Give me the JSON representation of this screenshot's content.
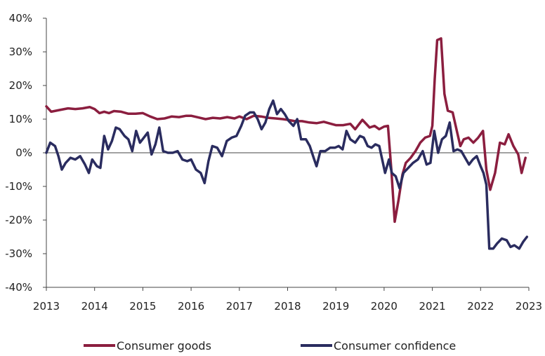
{
  "chart_data": {
    "type": "line",
    "title": "",
    "xlabel": "",
    "ylabel": "",
    "ylim": [
      -40,
      40
    ],
    "xlim": [
      2013,
      2023
    ],
    "yticks": [
      {
        "value": 40,
        "label": "40%"
      },
      {
        "value": 30,
        "label": "30%"
      },
      {
        "value": 20,
        "label": "20%"
      },
      {
        "value": 10,
        "label": "10%"
      },
      {
        "value": 0,
        "label": "0%"
      },
      {
        "value": -10,
        "label": "-10%"
      },
      {
        "value": -20,
        "label": "-20%"
      },
      {
        "value": -30,
        "label": "-30%"
      },
      {
        "value": -40,
        "label": "-40%"
      }
    ],
    "xticks": [
      {
        "value": 2013,
        "label": "2013"
      },
      {
        "value": 2014,
        "label": "2014"
      },
      {
        "value": 2015,
        "label": "2015"
      },
      {
        "value": 2016,
        "label": "2016"
      },
      {
        "value": 2017,
        "label": "2017"
      },
      {
        "value": 2018,
        "label": "2018"
      },
      {
        "value": 2019,
        "label": "2019"
      },
      {
        "value": 2020,
        "label": "2020"
      },
      {
        "value": 2021,
        "label": "2021"
      },
      {
        "value": 2022,
        "label": "2022"
      },
      {
        "value": 2023,
        "label": "2023"
      }
    ],
    "grid": false,
    "legend_position": "bottom",
    "series": [
      {
        "name": "Consumer goods",
        "color": "#8b1e3f",
        "points": [
          [
            2013.0,
            13.8
          ],
          [
            2013.1,
            12.2
          ],
          [
            2013.3,
            12.8
          ],
          [
            2013.45,
            13.2
          ],
          [
            2013.6,
            13.0
          ],
          [
            2013.75,
            13.2
          ],
          [
            2013.9,
            13.6
          ],
          [
            2014.0,
            13.0
          ],
          [
            2014.1,
            11.8
          ],
          [
            2014.2,
            12.2
          ],
          [
            2014.3,
            11.8
          ],
          [
            2014.4,
            12.4
          ],
          [
            2014.55,
            12.2
          ],
          [
            2014.7,
            11.6
          ],
          [
            2014.85,
            11.6
          ],
          [
            2015.0,
            11.8
          ],
          [
            2015.15,
            10.8
          ],
          [
            2015.3,
            10.0
          ],
          [
            2015.45,
            10.2
          ],
          [
            2015.6,
            10.8
          ],
          [
            2015.75,
            10.6
          ],
          [
            2015.9,
            11.0
          ],
          [
            2016.0,
            11.0
          ],
          [
            2016.15,
            10.5
          ],
          [
            2016.3,
            10.0
          ],
          [
            2016.45,
            10.4
          ],
          [
            2016.6,
            10.2
          ],
          [
            2016.75,
            10.6
          ],
          [
            2016.9,
            10.2
          ],
          [
            2017.0,
            10.8
          ],
          [
            2017.15,
            10.0
          ],
          [
            2017.3,
            11.0
          ],
          [
            2017.45,
            10.8
          ],
          [
            2017.6,
            10.4
          ],
          [
            2017.75,
            10.2
          ],
          [
            2017.9,
            10.0
          ],
          [
            2018.0,
            9.8
          ],
          [
            2018.15,
            9.4
          ],
          [
            2018.3,
            9.4
          ],
          [
            2018.45,
            9.0
          ],
          [
            2018.6,
            8.8
          ],
          [
            2018.75,
            9.2
          ],
          [
            2018.9,
            8.6
          ],
          [
            2019.0,
            8.2
          ],
          [
            2019.15,
            8.2
          ],
          [
            2019.3,
            8.6
          ],
          [
            2019.4,
            7.0
          ],
          [
            2019.55,
            9.8
          ],
          [
            2019.7,
            7.5
          ],
          [
            2019.8,
            8.0
          ],
          [
            2019.9,
            7.0
          ],
          [
            2020.0,
            7.8
          ],
          [
            2020.08,
            8.0
          ],
          [
            2020.15,
            -5.0
          ],
          [
            2020.22,
            -20.5
          ],
          [
            2020.3,
            -14.0
          ],
          [
            2020.38,
            -6.5
          ],
          [
            2020.45,
            -3.0
          ],
          [
            2020.55,
            -1.5
          ],
          [
            2020.65,
            0.5
          ],
          [
            2020.75,
            3.0
          ],
          [
            2020.85,
            4.5
          ],
          [
            2020.95,
            5.0
          ],
          [
            2021.0,
            8.0
          ],
          [
            2021.05,
            22.0
          ],
          [
            2021.1,
            33.5
          ],
          [
            2021.18,
            34.0
          ],
          [
            2021.25,
            17.5
          ],
          [
            2021.32,
            12.5
          ],
          [
            2021.42,
            12.0
          ],
          [
            2021.5,
            7.0
          ],
          [
            2021.58,
            2.0
          ],
          [
            2021.65,
            4.0
          ],
          [
            2021.75,
            4.5
          ],
          [
            2021.85,
            3.0
          ],
          [
            2021.95,
            4.5
          ],
          [
            2022.05,
            6.5
          ],
          [
            2022.12,
            -5.0
          ],
          [
            2022.2,
            -11.0
          ],
          [
            2022.3,
            -6.0
          ],
          [
            2022.4,
            3.0
          ],
          [
            2022.5,
            2.5
          ],
          [
            2022.58,
            5.5
          ],
          [
            2022.68,
            2.0
          ],
          [
            2022.78,
            -0.5
          ],
          [
            2022.85,
            -6.0
          ],
          [
            2022.93,
            -1.5
          ]
        ]
      },
      {
        "name": "Consumer confidence",
        "color": "#2a2c5f",
        "points": [
          [
            2013.0,
            0.0
          ],
          [
            2013.08,
            3.0
          ],
          [
            2013.18,
            2.0
          ],
          [
            2013.25,
            -1.0
          ],
          [
            2013.32,
            -5.0
          ],
          [
            2013.4,
            -3.0
          ],
          [
            2013.5,
            -1.5
          ],
          [
            2013.6,
            -2.0
          ],
          [
            2013.7,
            -1.0
          ],
          [
            2013.8,
            -3.5
          ],
          [
            2013.88,
            -6.0
          ],
          [
            2013.95,
            -2.0
          ],
          [
            2014.05,
            -4.0
          ],
          [
            2014.12,
            -4.5
          ],
          [
            2014.2,
            5.0
          ],
          [
            2014.28,
            1.0
          ],
          [
            2014.36,
            3.5
          ],
          [
            2014.44,
            7.5
          ],
          [
            2014.52,
            7.0
          ],
          [
            2014.62,
            5.0
          ],
          [
            2014.7,
            4.0
          ],
          [
            2014.78,
            0.5
          ],
          [
            2014.86,
            6.5
          ],
          [
            2014.94,
            3.0
          ],
          [
            2015.02,
            4.5
          ],
          [
            2015.1,
            6.0
          ],
          [
            2015.18,
            -0.5
          ],
          [
            2015.26,
            2.5
          ],
          [
            2015.34,
            7.5
          ],
          [
            2015.42,
            0.5
          ],
          [
            2015.52,
            0.0
          ],
          [
            2015.62,
            0.0
          ],
          [
            2015.72,
            0.5
          ],
          [
            2015.82,
            -2.0
          ],
          [
            2015.92,
            -2.5
          ],
          [
            2016.0,
            -2.0
          ],
          [
            2016.1,
            -5.0
          ],
          [
            2016.2,
            -6.0
          ],
          [
            2016.28,
            -9.0
          ],
          [
            2016.36,
            -2.5
          ],
          [
            2016.44,
            2.0
          ],
          [
            2016.54,
            1.5
          ],
          [
            2016.64,
            -1.0
          ],
          [
            2016.74,
            3.5
          ],
          [
            2016.84,
            4.5
          ],
          [
            2016.94,
            5.0
          ],
          [
            2017.04,
            8.0
          ],
          [
            2017.12,
            11.0
          ],
          [
            2017.22,
            12.0
          ],
          [
            2017.3,
            12.0
          ],
          [
            2017.38,
            10.0
          ],
          [
            2017.46,
            7.0
          ],
          [
            2017.54,
            9.0
          ],
          [
            2017.62,
            13.0
          ],
          [
            2017.7,
            15.5
          ],
          [
            2017.78,
            11.5
          ],
          [
            2017.86,
            13.0
          ],
          [
            2017.94,
            11.5
          ],
          [
            2018.02,
            9.5
          ],
          [
            2018.12,
            8.0
          ],
          [
            2018.2,
            10.0
          ],
          [
            2018.28,
            4.0
          ],
          [
            2018.38,
            4.0
          ],
          [
            2018.46,
            2.0
          ],
          [
            2018.54,
            -1.5
          ],
          [
            2018.6,
            -4.0
          ],
          [
            2018.68,
            0.5
          ],
          [
            2018.78,
            0.5
          ],
          [
            2018.88,
            1.5
          ],
          [
            2018.98,
            1.5
          ],
          [
            2019.06,
            2.0
          ],
          [
            2019.14,
            1.0
          ],
          [
            2019.22,
            6.5
          ],
          [
            2019.3,
            4.0
          ],
          [
            2019.4,
            3.0
          ],
          [
            2019.5,
            5.0
          ],
          [
            2019.58,
            4.5
          ],
          [
            2019.66,
            2.0
          ],
          [
            2019.74,
            1.5
          ],
          [
            2019.82,
            2.5
          ],
          [
            2019.9,
            2.0
          ],
          [
            2019.96,
            -2.0
          ],
          [
            2020.02,
            -6.0
          ],
          [
            2020.1,
            -2.0
          ],
          [
            2020.16,
            -6.0
          ],
          [
            2020.24,
            -7.0
          ],
          [
            2020.32,
            -10.5
          ],
          [
            2020.4,
            -6.0
          ],
          [
            2020.5,
            -4.5
          ],
          [
            2020.6,
            -3.0
          ],
          [
            2020.7,
            -2.0
          ],
          [
            2020.8,
            0.5
          ],
          [
            2020.88,
            -3.5
          ],
          [
            2020.96,
            -3.0
          ],
          [
            2021.04,
            6.5
          ],
          [
            2021.12,
            0.0
          ],
          [
            2021.2,
            4.0
          ],
          [
            2021.28,
            5.0
          ],
          [
            2021.36,
            9.0
          ],
          [
            2021.44,
            0.5
          ],
          [
            2021.52,
            1.0
          ],
          [
            2021.6,
            0.5
          ],
          [
            2021.68,
            -1.5
          ],
          [
            2021.76,
            -3.5
          ],
          [
            2021.84,
            -2.0
          ],
          [
            2021.92,
            -1.0
          ],
          [
            2022.0,
            -4.0
          ],
          [
            2022.06,
            -6.0
          ],
          [
            2022.12,
            -9.5
          ],
          [
            2022.18,
            -28.5
          ],
          [
            2022.26,
            -28.5
          ],
          [
            2022.34,
            -27.0
          ],
          [
            2022.44,
            -25.5
          ],
          [
            2022.54,
            -26.0
          ],
          [
            2022.62,
            -28.0
          ],
          [
            2022.7,
            -27.5
          ],
          [
            2022.8,
            -28.5
          ],
          [
            2022.88,
            -26.5
          ],
          [
            2022.96,
            -25.0
          ]
        ]
      }
    ]
  }
}
